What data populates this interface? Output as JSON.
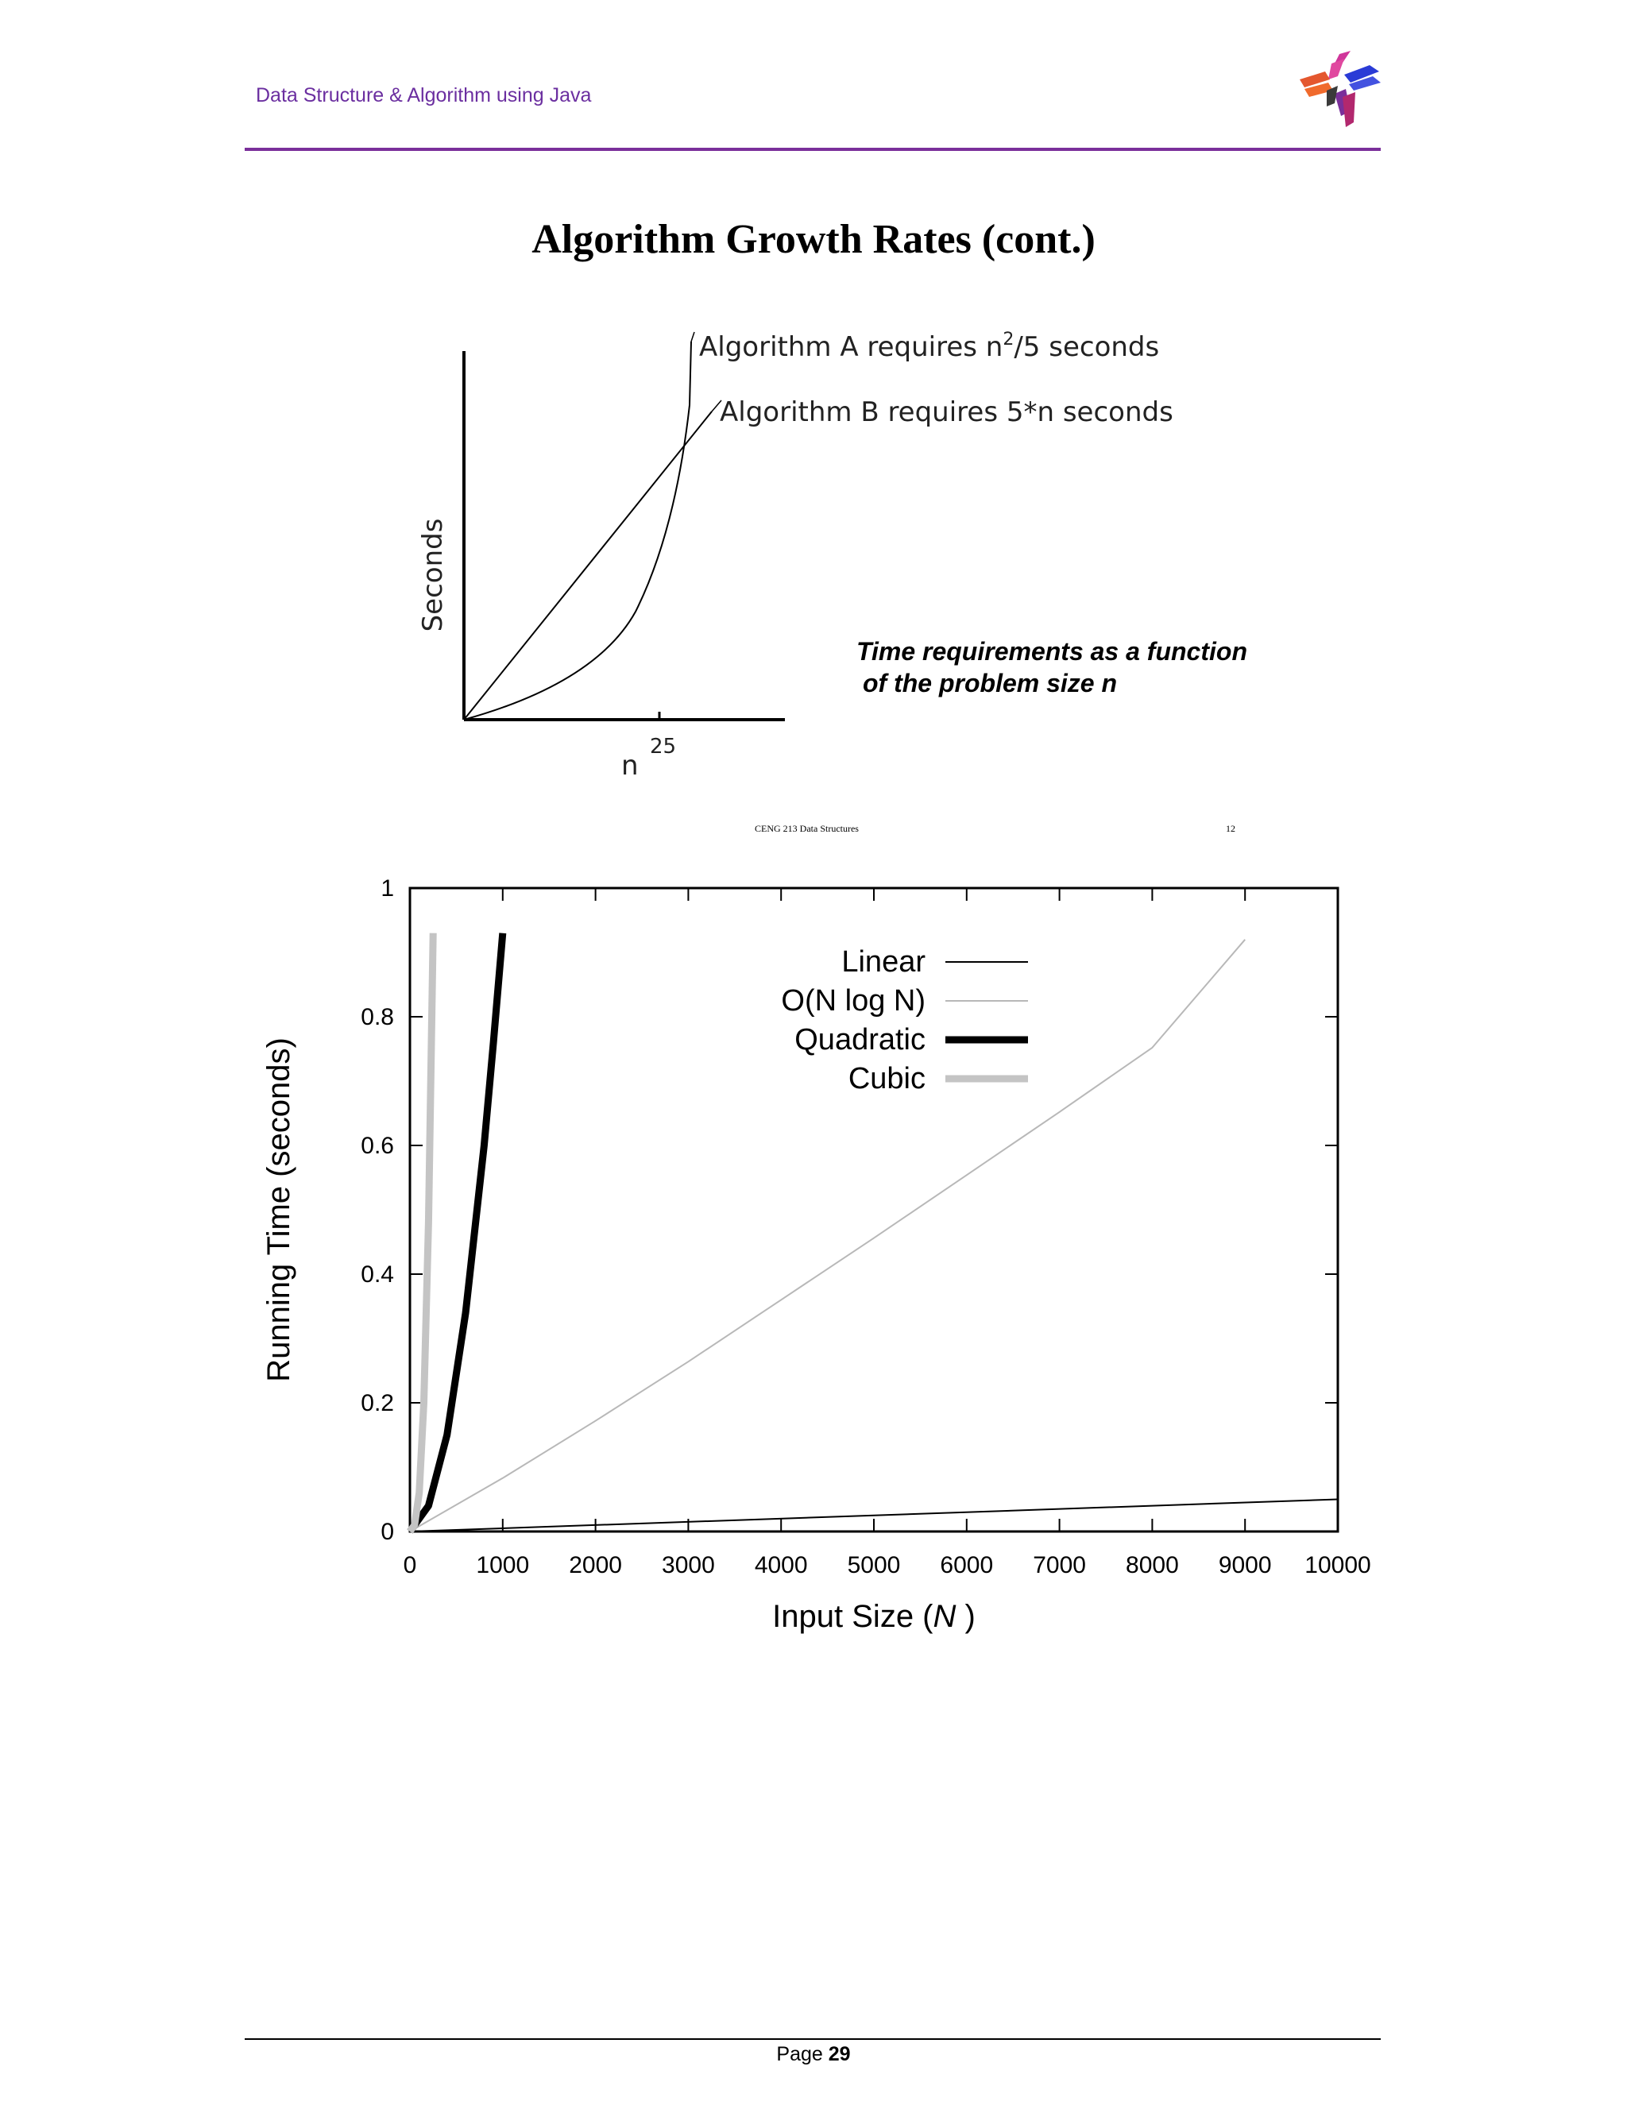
{
  "header": {
    "title": "Data Structure & Algorithm using Java"
  },
  "slide": {
    "title": "Algorithm Growth Rates (cont.)",
    "caption_line1": "Time requirements as a function",
    "caption_line2": "of the problem size n",
    "footer_course": "CENG 213 Data Structures",
    "footer_slide_number": "12"
  },
  "figure1": {
    "y_axis_label": "Seconds",
    "x_axis_label": "n",
    "x_tick": "25",
    "curve_a_label_prefix": "Algorithm A requires n",
    "curve_a_label_sup": "2",
    "curve_a_label_suffix": "/5 seconds",
    "curve_b_label": "Algorithm B requires 5*n seconds"
  },
  "chart_data": {
    "type": "line",
    "xlabel_prefix": "Input Size (",
    "xlabel_var": "N",
    "xlabel_suffix": " )",
    "ylabel": "Running Time (seconds)",
    "xlim": [
      0,
      10000
    ],
    "ylim": [
      0,
      1
    ],
    "x_ticks": [
      "0",
      "1000",
      "2000",
      "3000",
      "4000",
      "5000",
      "6000",
      "7000",
      "8000",
      "9000",
      "10000"
    ],
    "y_ticks": [
      "0",
      "0.2",
      "0.4",
      "0.6",
      "0.8",
      "1"
    ],
    "legend_position": "top-center",
    "series": [
      {
        "name": "Linear",
        "color": "#000000",
        "weight": "thin",
        "x": [
          0,
          10000
        ],
        "y": [
          0,
          0.05
        ]
      },
      {
        "name": "O(N log N)",
        "color": "#b8b8b8",
        "weight": "thin",
        "x": [
          0,
          1000,
          2000,
          3000,
          4000,
          5000,
          6000,
          7000,
          8000,
          9000
        ],
        "y": [
          0,
          0.083,
          0.172,
          0.264,
          0.36,
          0.456,
          0.554,
          0.652,
          0.752,
          0.92
        ]
      },
      {
        "name": "Quadratic",
        "color": "#000000",
        "weight": "thick",
        "x": [
          0,
          200,
          400,
          600,
          800,
          900,
          1000
        ],
        "y": [
          0,
          0.04,
          0.15,
          0.34,
          0.6,
          0.76,
          0.93
        ]
      },
      {
        "name": "Cubic",
        "color": "#c4c4c4",
        "weight": "thick",
        "x": [
          0,
          50,
          100,
          150,
          200,
          250
        ],
        "y": [
          0,
          0.01,
          0.06,
          0.2,
          0.48,
          0.93
        ]
      }
    ]
  },
  "footer": {
    "page_label": "Page ",
    "page_number": "29"
  }
}
